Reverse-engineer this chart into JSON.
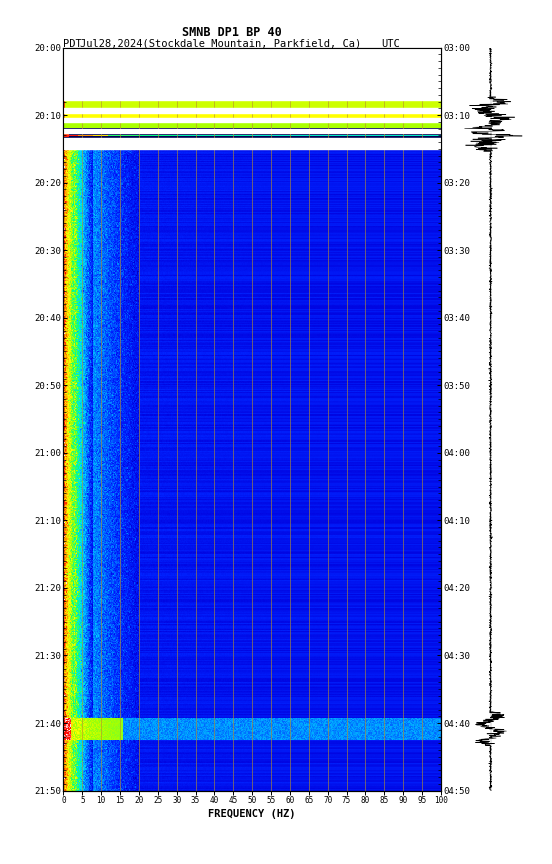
{
  "title_line1": "SMNB DP1 BP 40",
  "title_line2_left": "PDT",
  "title_line2_middle": "Jul28,2024(Stockdale Mountain, Parkfield, Ca)",
  "title_line2_right": "UTC",
  "pdt_times": [
    "20:00",
    "20:10",
    "20:20",
    "20:30",
    "20:40",
    "20:50",
    "21:00",
    "21:10",
    "21:20",
    "21:30",
    "21:40",
    "21:50"
  ],
  "utc_times": [
    "03:00",
    "03:10",
    "03:20",
    "03:30",
    "03:40",
    "03:50",
    "04:00",
    "04:10",
    "04:20",
    "04:30",
    "04:40",
    "04:50"
  ],
  "freq_ticks": [
    0,
    5,
    10,
    15,
    20,
    25,
    30,
    35,
    40,
    45,
    50,
    55,
    60,
    65,
    70,
    75,
    80,
    85,
    90,
    95,
    100
  ],
  "xlabel": "FREQUENCY (HZ)",
  "freq_min": 0,
  "freq_max": 100,
  "background_color": "#ffffff",
  "grid_color": "#b8902a",
  "colormap": [
    [
      0.0,
      "#000050"
    ],
    [
      0.08,
      "#000090"
    ],
    [
      0.18,
      "#0000dd"
    ],
    [
      0.3,
      "#0022ff"
    ],
    [
      0.42,
      "#0088ff"
    ],
    [
      0.54,
      "#00ddff"
    ],
    [
      0.63,
      "#00ff88"
    ],
    [
      0.72,
      "#aaff00"
    ],
    [
      0.8,
      "#ffff00"
    ],
    [
      0.87,
      "#ffaa00"
    ],
    [
      0.93,
      "#ff4400"
    ],
    [
      0.97,
      "#ff0000"
    ],
    [
      1.0,
      "#ffffff"
    ]
  ],
  "n_time": 660,
  "n_freq": 500
}
